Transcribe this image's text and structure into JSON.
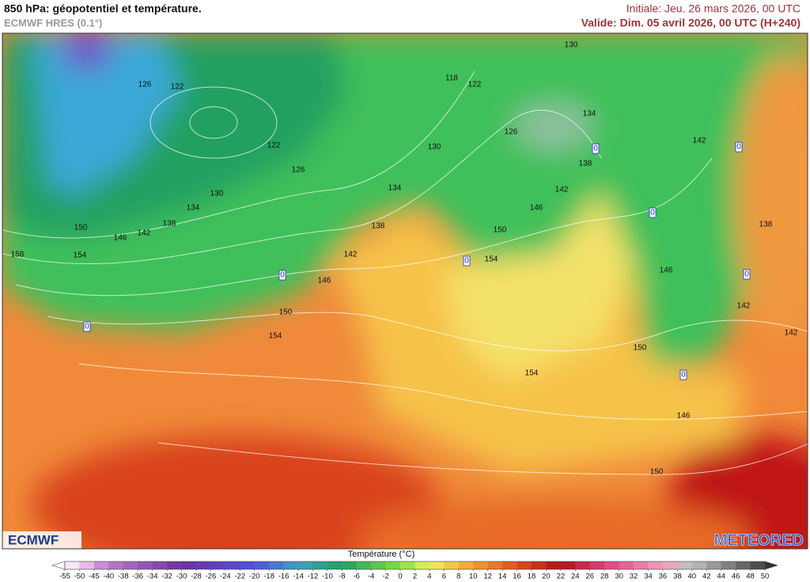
{
  "header": {
    "title": "850 hPa: géopotentiel et température.",
    "subtitle": "ECMWF HRES (0.1°)",
    "initial": "Initiale: Jeu. 26 mars 2026, 00 UTC",
    "valid": "Valide: Dim. 05 avril 2026, 00 UTC (H+240)"
  },
  "logos": {
    "left": "ECMWF",
    "right": "METEORED"
  },
  "contour_labels": [
    126,
    122,
    122,
    126,
    130,
    134,
    138,
    142,
    146,
    150,
    154,
    158,
    0,
    0,
    146,
    150,
    154,
    142,
    138,
    134,
    130,
    118,
    122,
    130,
    126,
    134,
    138,
    142,
    146,
    150,
    154,
    0,
    0,
    0,
    142,
    0,
    138,
    146,
    0,
    142,
    142,
    150,
    0,
    154,
    146,
    150
  ],
  "colorbar": {
    "title": "Température (°C)",
    "ticks": [
      -55,
      -50,
      -45,
      -40,
      -38,
      -36,
      -34,
      -32,
      -30,
      -28,
      -26,
      -24,
      -22,
      -20,
      -18,
      -16,
      -14,
      -12,
      -10,
      -8,
      -6,
      -4,
      -2,
      0,
      2,
      4,
      6,
      8,
      10,
      12,
      14,
      16,
      18,
      20,
      22,
      24,
      26,
      28,
      30,
      32,
      34,
      36,
      38,
      40,
      42,
      44,
      46,
      48,
      50
    ]
  }
}
